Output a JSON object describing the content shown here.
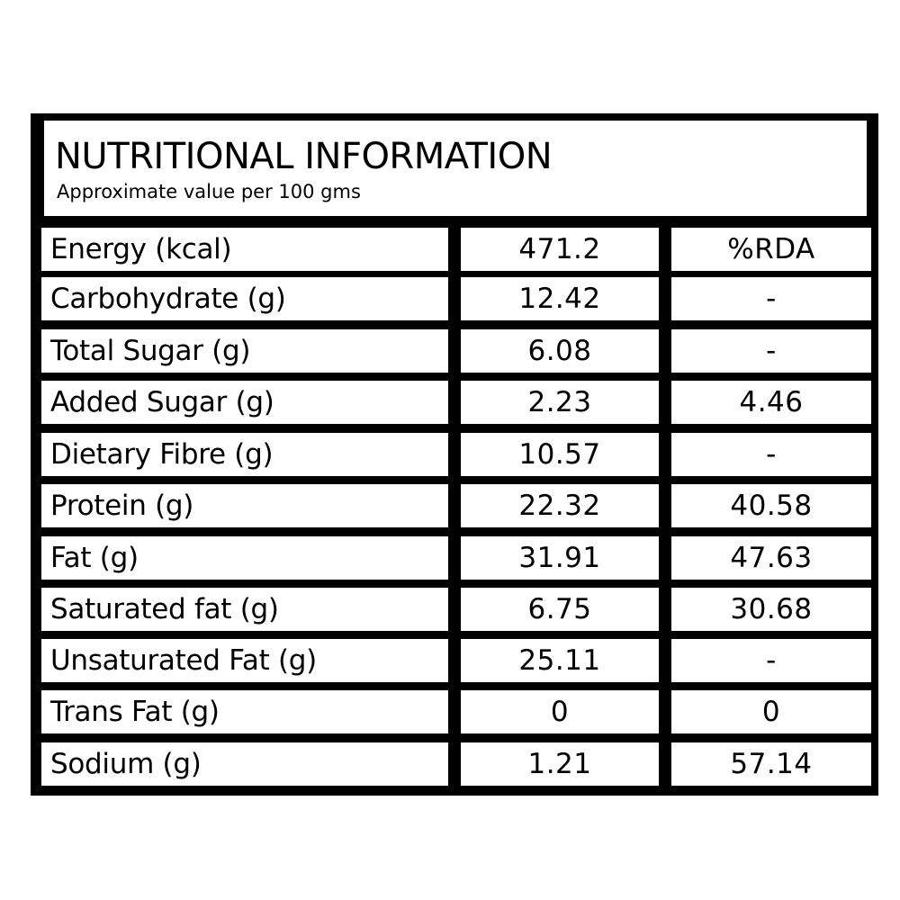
{
  "header": {
    "title": "NUTRITIONAL INFORMATION",
    "subtitle": "Approximate value per 100 gms"
  },
  "rows": [
    {
      "label": "Energy (kcal)",
      "value": "471.2",
      "rda": "%RDA"
    },
    {
      "label": "Carbohydrate (g)",
      "value": "12.42",
      "rda": "-"
    },
    {
      "label": "Total Sugar (g)",
      "value": "6.08",
      "rda": "-"
    },
    {
      "label": "Added Sugar (g)",
      "value": "2.23",
      "rda": "4.46"
    },
    {
      "label": "Dietary Fibre (g)",
      "value": "10.57",
      "rda": "-"
    },
    {
      "label": "Protein (g)",
      "value": "22.32",
      "rda": "40.58"
    },
    {
      "label": "Fat (g)",
      "value": "31.91",
      "rda": "47.63"
    },
    {
      "label": "Saturated fat (g)",
      "value": "6.75",
      "rda": "30.68"
    },
    {
      "label": "Unsaturated Fat (g)",
      "value": "25.11",
      "rda": "-"
    },
    {
      "label": "Trans Fat (g)",
      "value": "0",
      "rda": "0"
    },
    {
      "label": "Sodium (g)",
      "value": "1.21",
      "rda": "57.14"
    }
  ]
}
